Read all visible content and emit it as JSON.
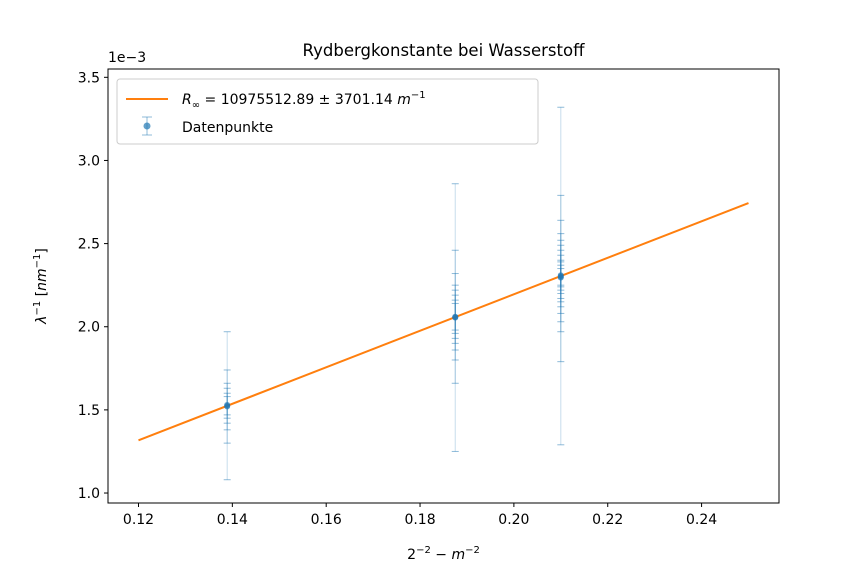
{
  "chart_data": {
    "type": "scatter",
    "title": "Rydbergkonstante bei Wasserstoff",
    "xlabel": "2^{-2} - m^{-2}",
    "ylabel": "λ^{-1} [nm^{-1}]",
    "y_offset_text": "1e−3",
    "xlim": [
      0.1135,
      0.2565
    ],
    "ylim": [
      0.00094,
      0.00355
    ],
    "xticks": [
      0.12,
      0.14,
      0.16,
      0.18,
      0.2,
      0.22,
      0.24
    ],
    "xtick_labels": [
      "0.12",
      "0.14",
      "0.16",
      "0.18",
      "0.20",
      "0.22",
      "0.24"
    ],
    "yticks": [
      0.001,
      0.0015,
      0.002,
      0.0025,
      0.003,
      0.0035
    ],
    "ytick_labels": [
      "1.0",
      "1.5",
      "2.0",
      "2.5",
      "3.0",
      "3.5"
    ],
    "legend_position": "top-left",
    "fit_line": {
      "name": "R_∞ = 10975512.89 ± 3701.14 m^{-1}",
      "color": "#ff7f0e",
      "x": [
        0.12,
        0.25
      ],
      "y": [
        0.001317,
        0.002744
      ]
    },
    "data_series": {
      "name": "Datenpunkte",
      "color": "#1f77b4",
      "groups": [
        {
          "x": 0.1389,
          "y": 0.001523,
          "errorbars": [
            [
              0.00108,
              0.00197
            ],
            [
              0.0013,
              0.00174
            ],
            [
              0.00138,
              0.00166
            ],
            [
              0.00142,
              0.00163
            ],
            [
              0.00145,
              0.0016
            ],
            [
              0.00147,
              0.00158
            ]
          ]
        },
        {
          "x": 0.1875,
          "y": 0.002057,
          "errorbars": [
            [
              0.00125,
              0.00286
            ],
            [
              0.00166,
              0.00246
            ],
            [
              0.0018,
              0.00232
            ],
            [
              0.00186,
              0.00225
            ],
            [
              0.0019,
              0.00222
            ],
            [
              0.00193,
              0.00219
            ],
            [
              0.00196,
              0.00216
            ],
            [
              0.00198,
              0.00214
            ]
          ]
        },
        {
          "x": 0.21,
          "y": 0.002302,
          "errorbars": [
            [
              0.00129,
              0.00332
            ],
            [
              0.00179,
              0.00279
            ],
            [
              0.00197,
              0.00264
            ],
            [
              0.00203,
              0.00256
            ],
            [
              0.00208,
              0.00252
            ],
            [
              0.00212,
              0.00249
            ],
            [
              0.00215,
              0.00246
            ],
            [
              0.00217,
              0.00243
            ],
            [
              0.0022,
              0.0024
            ],
            [
              0.00222,
              0.00239
            ],
            [
              0.00224,
              0.00237
            ],
            [
              0.00225,
              0.00235
            ]
          ]
        }
      ],
      "points": [
        {
          "x": 0.1389,
          "y": 0.00152
        },
        {
          "x": 0.1389,
          "y": 0.001525
        },
        {
          "x": 0.1389,
          "y": 0.00153
        },
        {
          "x": 0.1875,
          "y": 0.002055
        },
        {
          "x": 0.1875,
          "y": 0.00206
        },
        {
          "x": 0.1875,
          "y": 0.002058
        },
        {
          "x": 0.21,
          "y": 0.002295
        },
        {
          "x": 0.21,
          "y": 0.0023
        },
        {
          "x": 0.21,
          "y": 0.002305
        },
        {
          "x": 0.21,
          "y": 0.00231
        }
      ]
    }
  }
}
